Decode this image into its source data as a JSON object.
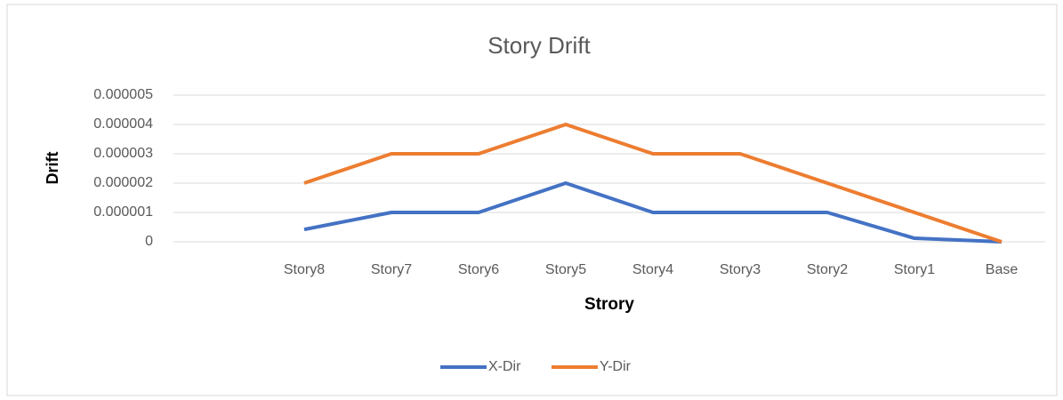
{
  "chart_data": {
    "type": "line",
    "title": "Story Drift",
    "x_label": "Strory",
    "y_label": "Drift",
    "categories": [
      null,
      "Story8",
      "Story7",
      "Story6",
      "Story5",
      "Story4",
      "Story3",
      "Story2",
      "Story1",
      "Base"
    ],
    "series": [
      {
        "name": "X-Dir",
        "color": "#4472c4",
        "values": [
          null,
          4.2e-07,
          1e-06,
          1e-06,
          2e-06,
          1e-06,
          1e-06,
          1e-06,
          1.2e-07,
          0
        ]
      },
      {
        "name": "Y-Dir",
        "color": "#ed7d31",
        "values": [
          null,
          2e-06,
          3e-06,
          3e-06,
          4e-06,
          3e-06,
          3e-06,
          2e-06,
          1e-06,
          0
        ]
      }
    ],
    "ylim": [
      0,
      5e-06
    ],
    "yticks": [
      0,
      {
        "value": 1e-06,
        "label": "0.000001"
      },
      {
        "value": 2e-06,
        "label": "0.000002"
      },
      {
        "value": 3e-06,
        "label": "0.000003"
      },
      {
        "value": 4e-06,
        "label": "0.000004"
      },
      {
        "value": 5e-06,
        "label": "0.000005"
      }
    ],
    "grid": true,
    "legend": "bottom"
  }
}
